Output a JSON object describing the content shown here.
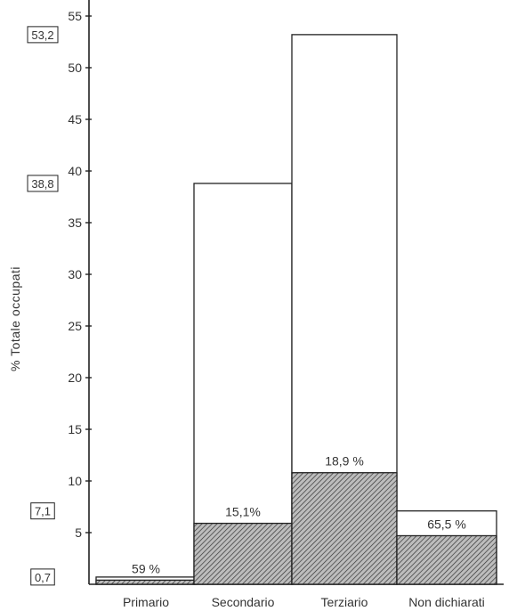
{
  "chart_data": {
    "type": "bar",
    "ylabel": "% Totale occupati",
    "xlabel": "",
    "ylim": [
      0,
      57
    ],
    "yticks": [
      5,
      10,
      15,
      20,
      25,
      30,
      35,
      40,
      45,
      50,
      55
    ],
    "grid": false,
    "categories": [
      "Primario",
      "Secondario",
      "Terziario",
      "Non dichiarati"
    ],
    "series": [
      {
        "values": [
          0.7,
          38.8,
          53.2,
          7.1
        ]
      },
      {
        "values": [
          0.4,
          5.9,
          10.8,
          4.7
        ]
      }
    ],
    "inner_labels": [
      "59 %",
      "15,1%",
      "18,9 %",
      "65,5 %"
    ],
    "boxed_labels": [
      {
        "value": 53.2,
        "text": "53,2"
      },
      {
        "value": 38.8,
        "text": "38,8"
      },
      {
        "value": 7.1,
        "text": "7,1"
      },
      {
        "value": 0.7,
        "text": "0,7"
      }
    ],
    "colors": {
      "outline": "#222222",
      "hatch": "#333333",
      "hatch_bg": "#bdbdbd"
    }
  }
}
